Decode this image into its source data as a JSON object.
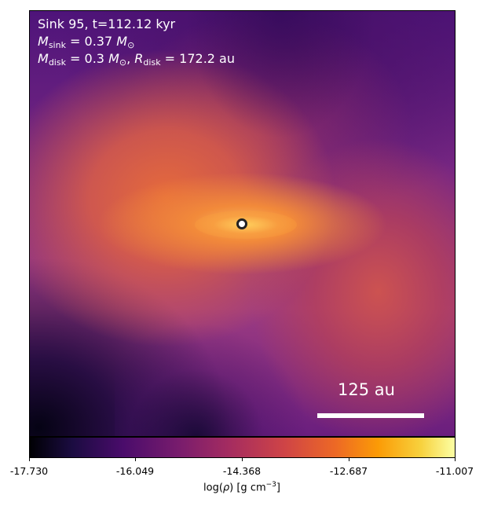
{
  "panel": {
    "title_line_1": "Sink 95, t=112.12 kyr",
    "sink_mass": {
      "symbol": "M",
      "subscript": "sink",
      "equals": "= 0.37",
      "unit_symbol": "M",
      "unit_subscript": "⊙"
    },
    "disk_properties": {
      "mass_symbol": "M",
      "mass_subscript": "disk",
      "mass_equals": "= 0.3",
      "mass_unit_symbol": "M",
      "mass_unit_subscript": "⊙",
      "separator": ",",
      "radius_symbol": "R",
      "radius_subscript": "disk",
      "radius_equals": "= 172.2",
      "radius_unit": "au"
    },
    "scalebar_label": "125 au"
  },
  "colorbar": {
    "colormap": "inferno",
    "range": [
      -17.73,
      -11.007
    ],
    "ticks": [
      "-17.730",
      "-16.049",
      "-14.368",
      "-12.687",
      "-11.007"
    ],
    "label_prefix": "log(",
    "label_symbol": "ρ",
    "label_suffix": ") [g cm",
    "label_exponent": "−3",
    "label_close": "]"
  },
  "colors": {
    "text_overlay": "#ffffff",
    "marker_fill": "#ffffff",
    "marker_edge": "#222222"
  }
}
